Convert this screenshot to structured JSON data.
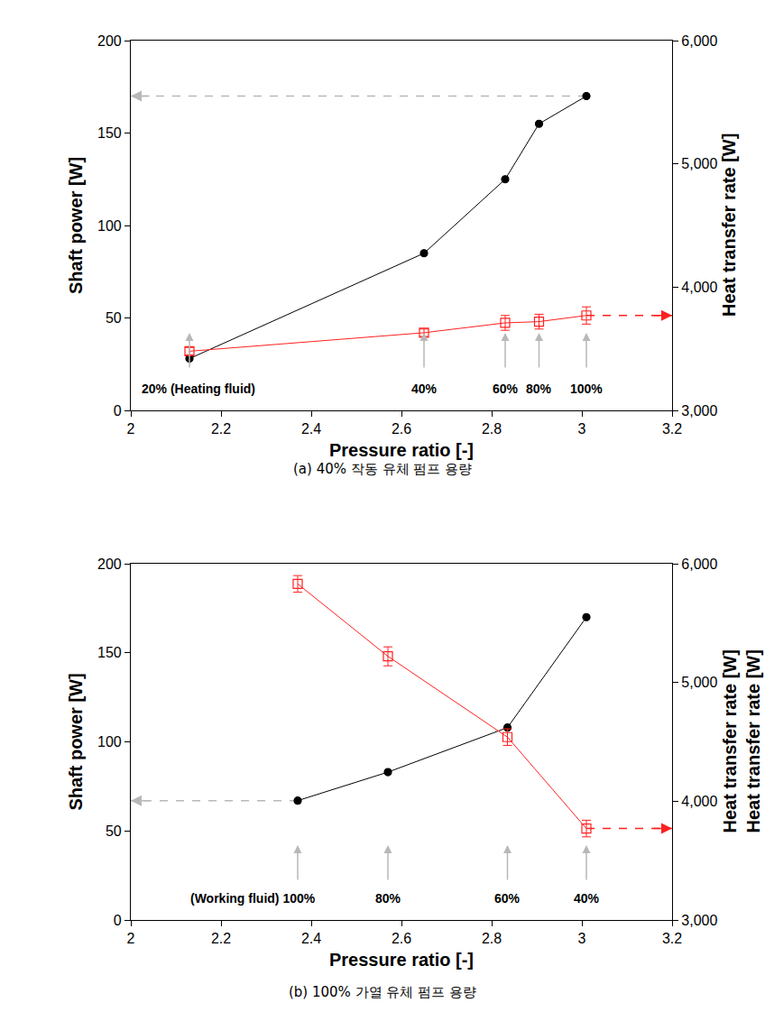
{
  "chart_data": [
    {
      "type": "line",
      "title": "(a) 40% 작동 유체 펌프 용량",
      "x_label": "Pressure ratio [-]",
      "y_label": "Shaft power [W]",
      "y2_labels": [
        "Heat transfer rate [W]"
      ],
      "x": [
        2.13,
        2.65,
        2.83,
        2.905,
        3.01
      ],
      "series": [
        {
          "color": "#000000",
          "marker": "circle",
          "values": [
            28,
            85,
            125,
            155,
            170
          ]
        },
        {
          "color": "#ff2020",
          "marker": "square-open",
          "axis": "y2",
          "values": [
            3480,
            3630,
            3710,
            3720,
            3770
          ],
          "errors": [
            30,
            30,
            60,
            60,
            70
          ]
        }
      ],
      "annotations": [
        {
          "x": 2.13,
          "text": "20% (Heating fluid)"
        },
        {
          "x": 2.65,
          "text": "40%"
        },
        {
          "x": 2.83,
          "text": "60%"
        },
        {
          "x": 2.905,
          "text": "80%"
        },
        {
          "x": 3.01,
          "text": "100%"
        }
      ],
      "xlim": [
        2,
        3.2
      ],
      "xticks": [
        2,
        2.2,
        2.4,
        2.6,
        2.8,
        3,
        3.2
      ],
      "ylim": [
        0,
        200
      ],
      "yticks": [
        0,
        50,
        100,
        150,
        200
      ],
      "y2lim": [
        3000,
        6000
      ],
      "y2ticks": [
        {
          "value": 3000,
          "label": "3,000"
        },
        {
          "value": 4000,
          "label": "4,000"
        },
        {
          "value": 5000,
          "label": "5,000"
        },
        {
          "value": 6000,
          "label": "6,000"
        }
      ],
      "grid": false
    },
    {
      "type": "line",
      "title": "(b) 100% 가열 유체 펌프 용량",
      "x_label": "Pressure ratio [-]",
      "y_label": "Shaft power [W]",
      "y2_labels": [
        "Heat transfer rate [W]",
        "Heat transfer rate [W]"
      ],
      "x": [
        2.37,
        2.57,
        2.835,
        3.01
      ],
      "series": [
        {
          "color": "#000000",
          "marker": "circle",
          "values": [
            67,
            83,
            108,
            170
          ]
        },
        {
          "color": "#ff2020",
          "marker": "square-open",
          "axis": "y2",
          "values": [
            5830,
            5220,
            4540,
            3770
          ],
          "errors": [
            70,
            80,
            70,
            70
          ]
        }
      ],
      "annotations": [
        {
          "x": 2.37,
          "text": "(Working fluid) 100%"
        },
        {
          "x": 2.57,
          "text": "80%"
        },
        {
          "x": 2.835,
          "text": "60%"
        },
        {
          "x": 3.01,
          "text": "40%"
        }
      ],
      "xlim": [
        2,
        3.2
      ],
      "xticks": [
        2,
        2.2,
        2.4,
        2.6,
        2.8,
        3,
        3.2
      ],
      "ylim": [
        0,
        200
      ],
      "yticks": [
        0,
        50,
        100,
        150,
        200
      ],
      "y2lim": [
        3000,
        6000
      ],
      "y2ticks": [
        {
          "value": 3000,
          "label": "3,000"
        },
        {
          "value": 4000,
          "label": "4,000"
        },
        {
          "value": 5000,
          "label": "5,000"
        },
        {
          "value": 6000,
          "label": "6,000"
        }
      ],
      "grid": false
    }
  ]
}
